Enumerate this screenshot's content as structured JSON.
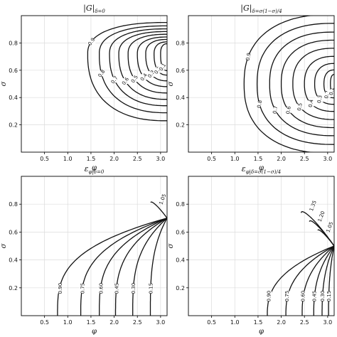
{
  "chart_data": [
    {
      "type": "contour",
      "title": "|G|_{δ=0}",
      "xlabel": "φ",
      "ylabel": "σ",
      "xlim": [
        0,
        3.14
      ],
      "ylim": [
        0,
        1
      ],
      "xticks": [
        "0.5",
        "1.0",
        "1.5",
        "2.0",
        "2.5",
        "3.0"
      ],
      "yticks": [
        "0.2",
        "0.4",
        "0.6",
        "0.8"
      ],
      "grid": true,
      "contour_levels": [
        "0.9",
        "0.8",
        "0.7",
        "0.6",
        "0.5",
        "0.4",
        "0.3",
        "0.2",
        "0.1"
      ],
      "center": {
        "x": 3.14,
        "y": 0.72
      },
      "contours": [
        {
          "label": "0.9",
          "left_x": 1.43
        },
        {
          "label": "0.8",
          "left_x": 1.68
        },
        {
          "label": "0.7",
          "left_x": 1.9
        },
        {
          "label": "0.6",
          "left_x": 2.1
        },
        {
          "label": "0.5",
          "left_x": 2.3
        },
        {
          "label": "0.4",
          "left_x": 2.5
        },
        {
          "label": "0.3",
          "left_x": 2.68
        },
        {
          "label": "0.2",
          "left_x": 2.86
        },
        {
          "label": "0.1",
          "left_x": 3.0
        }
      ]
    },
    {
      "type": "contour",
      "title": "|G|_{δ=σ(1−σ)/4}",
      "xlabel": "φ",
      "ylabel": "σ",
      "xlim": [
        0,
        3.14
      ],
      "ylim": [
        0,
        1
      ],
      "xticks": [
        "0.5",
        "1.0",
        "1.5",
        "2.0",
        "2.5",
        "3.0"
      ],
      "yticks": [
        "0.2",
        "0.4",
        "0.6",
        "0.8"
      ],
      "grid": true,
      "center": {
        "x": 3.14,
        "y": 0.5
      },
      "contours": [
        {
          "label": "0.9",
          "left_x": 1.2
        },
        {
          "label": "0.8",
          "left_x": 1.48
        },
        {
          "label": "0.7",
          "left_x": 1.75
        },
        {
          "label": "0.6",
          "left_x": 2.0
        },
        {
          "label": "0.5",
          "left_x": 2.25
        },
        {
          "label": "0.4",
          "left_x": 2.5
        },
        {
          "label": "0.3",
          "left_x": 2.72
        },
        {
          "label": "0.2",
          "left_x": 2.92
        },
        {
          "label": "0.1",
          "left_x": 3.06
        }
      ]
    },
    {
      "type": "contour",
      "title": "ε_{φ|δ=0}",
      "xlabel": "φ",
      "ylabel": "σ",
      "xlim": [
        0,
        3.14
      ],
      "ylim": [
        0,
        1
      ],
      "xticks": [
        "0.5",
        "1.0",
        "1.5",
        "2.0",
        "2.5",
        "3.0"
      ],
      "yticks": [
        "0.2",
        "0.4",
        "0.6",
        "0.8"
      ],
      "grid": true,
      "focus": {
        "x": 3.14,
        "y": 0.7
      },
      "contours": [
        {
          "label": "1.05",
          "type": "upper"
        },
        {
          "label": "0.90",
          "bottom_x": 0.78
        },
        {
          "label": "0.75",
          "bottom_x": 1.28
        },
        {
          "label": "0.60",
          "bottom_x": 1.68
        },
        {
          "label": "0.45",
          "bottom_x": 2.03
        },
        {
          "label": "0.30",
          "bottom_x": 2.4
        },
        {
          "label": "0.15",
          "bottom_x": 2.78
        }
      ]
    },
    {
      "type": "contour",
      "title": "ε_{φ|δ=σ(1−σ)/4}",
      "xlabel": "φ",
      "ylabel": "σ",
      "xlim": [
        0,
        3.14
      ],
      "ylim": [
        0,
        1
      ],
      "xticks": [
        "0.5",
        "1.0",
        "1.5",
        "2.0",
        "2.5",
        "3.0"
      ],
      "yticks": [
        "0.2",
        "0.4",
        "0.6",
        "0.8"
      ],
      "grid": true,
      "focus": {
        "x": 3.14,
        "y": 0.5
      },
      "contours": [
        {
          "label": "1.05",
          "type": "upper"
        },
        {
          "label": "1.20",
          "type": "upper"
        },
        {
          "label": "1.35",
          "type": "upper"
        },
        {
          "label": "0.90",
          "bottom_x": 1.7
        },
        {
          "label": "0.75",
          "bottom_x": 2.1
        },
        {
          "label": "0.60",
          "bottom_x": 2.45
        },
        {
          "label": "0.45",
          "bottom_x": 2.7
        },
        {
          "label": "0.30",
          "bottom_x": 2.88
        },
        {
          "label": "0.15",
          "bottom_x": 3.02
        }
      ]
    }
  ]
}
